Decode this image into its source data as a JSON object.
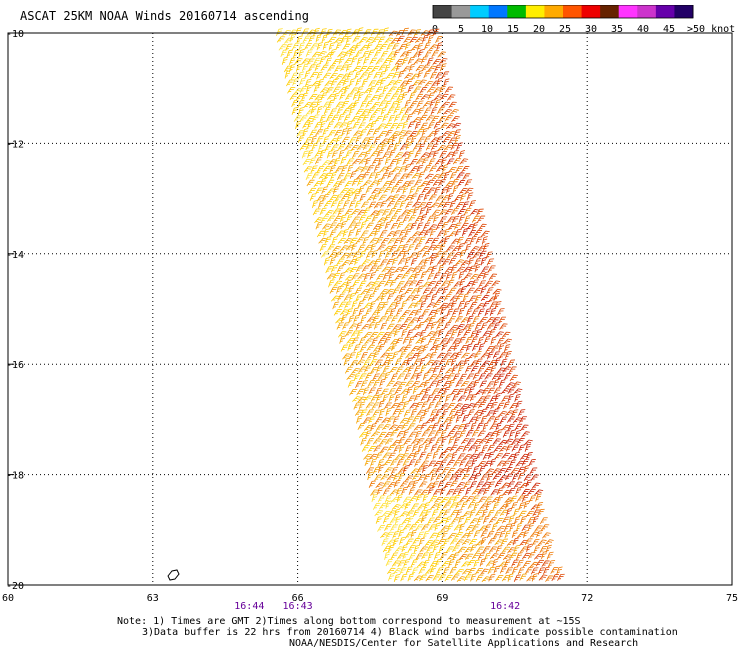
{
  "title": "ASCAT 25KM NOAA Winds 20160714 ascending",
  "colorbar": {
    "labels": [
      "0",
      "5",
      "10",
      "15",
      "20",
      "25",
      "30",
      "35",
      "40",
      "45",
      ">50 knots"
    ],
    "colors": [
      "#444444",
      "#999999",
      "#00ccff",
      "#0077ff",
      "#00bb00",
      "#ffee00",
      "#ffaa00",
      "#ff5500",
      "#ee0000",
      "#662200",
      "#ff33ff",
      "#cc33cc",
      "#6600aa",
      "#220066"
    ]
  },
  "axes": {
    "x_ticks": [
      "60",
      "63",
      "66",
      "69",
      "72",
      "75"
    ],
    "y_ticks": [
      "-10",
      "-12",
      "-14",
      "-16",
      "-18",
      "-20"
    ],
    "lon_range": [
      60,
      75
    ],
    "lat_range": [
      -10,
      -20
    ]
  },
  "times": [
    {
      "label": "16:44",
      "lon": 65.0
    },
    {
      "label": "16:43",
      "lon": 66.0
    },
    {
      "label": "16:42",
      "lon": 70.3
    }
  ],
  "swath_colors": [
    "#ffe033",
    "#ffcc00",
    "#f5a300",
    "#ee7700",
    "#dd4400",
    "#cc2200"
  ],
  "notes": {
    "line1": "Note: 1) Times are GMT 2)Times along bottom correspond to measurement at ~15S",
    "line2": "3)Data buffer is 22 hrs from 20160714 4) Black wind barbs indicate possible contamination",
    "line3": "NOAA/NESDIS/Center for Satellite Applications and Research"
  }
}
